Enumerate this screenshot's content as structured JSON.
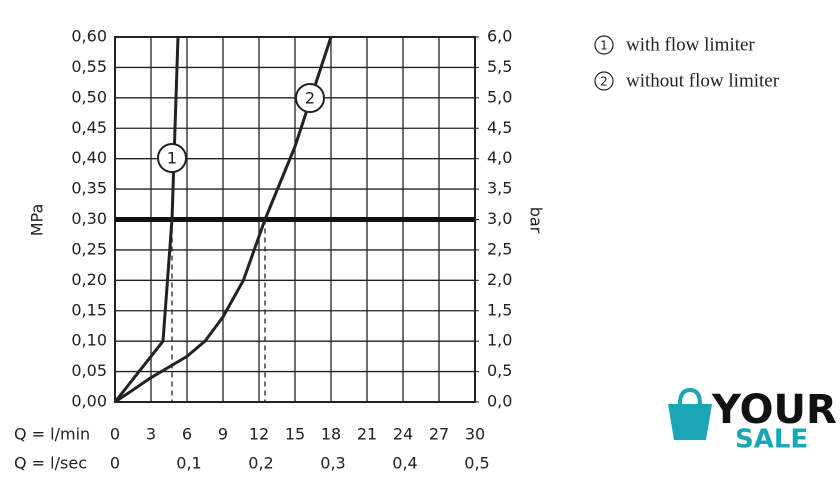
{
  "chart_data": {
    "type": "line",
    "x_label": "Q = l/min",
    "x2_label": "Q = l/sec",
    "y_label": "MPa",
    "y2_label": "bar",
    "xlim": [
      0,
      30
    ],
    "xticks": [
      0,
      3,
      6,
      9,
      12,
      15,
      18,
      21,
      24,
      27,
      30
    ],
    "x2lim": [
      0,
      0.5
    ],
    "x2ticks": [
      0,
      {
        "value": 0.1,
        "label": "0,1"
      },
      {
        "value": 0.2,
        "label": "0,2"
      },
      {
        "value": 0.3,
        "label": "0,3"
      },
      {
        "value": 0.4,
        "label": "0,4"
      },
      {
        "value": 0.5,
        "label": "0,5"
      }
    ],
    "ylim": [
      0,
      0.6
    ],
    "yticks": [
      {
        "value": 0,
        "label": "0,00"
      },
      {
        "value": 0.05,
        "label": "0,05"
      },
      {
        "value": 0.1,
        "label": "0,10"
      },
      {
        "value": 0.15,
        "label": "0,15"
      },
      {
        "value": 0.2,
        "label": "0,20"
      },
      {
        "value": 0.25,
        "label": "0,25"
      },
      {
        "value": 0.3,
        "label": "0,30"
      },
      {
        "value": 0.35,
        "label": "0,35"
      },
      {
        "value": 0.4,
        "label": "0,40"
      },
      {
        "value": 0.45,
        "label": "0,45"
      },
      {
        "value": 0.5,
        "label": "0,50"
      },
      {
        "value": 0.55,
        "label": "0,55"
      },
      {
        "value": 0.6,
        "label": "0,60"
      }
    ],
    "y2lim": [
      0,
      6
    ],
    "y2ticks": [
      {
        "value": 0,
        "label": "0,0"
      },
      {
        "value": 0.5,
        "label": "0,5"
      },
      {
        "value": 1,
        "label": "1,0"
      },
      {
        "value": 1.5,
        "label": "1,5"
      },
      {
        "value": 2,
        "label": "2,0"
      },
      {
        "value": 2.5,
        "label": "2,5"
      },
      {
        "value": 3,
        "label": "3,0"
      },
      {
        "value": 3.5,
        "label": "3,5"
      },
      {
        "value": 4,
        "label": "4,0"
      },
      {
        "value": 4.5,
        "label": "4,5"
      },
      {
        "value": 5,
        "label": "5,0"
      },
      {
        "value": 5.5,
        "label": "5,5"
      },
      {
        "value": 6,
        "label": "6,0"
      }
    ],
    "grid": true,
    "reference_line": 0.3,
    "drop_lines": [
      4.75,
      12.5
    ],
    "series": [
      {
        "name": "with flow limiter",
        "label": "1",
        "color": "#222222",
        "x": [
          0,
          4,
          4.75,
          5.25
        ],
        "values": [
          0,
          0.1,
          0.3,
          0.6
        ]
      },
      {
        "name": "without flow limiter",
        "label": "2",
        "color": "#222222",
        "x": [
          0,
          3,
          6,
          7.5,
          9,
          10.7,
          12.5,
          15,
          18
        ],
        "values": [
          0,
          0.04,
          0.075,
          0.1,
          0.14,
          0.2,
          0.3,
          0.42,
          0.6
        ]
      }
    ]
  },
  "watermark": {
    "line1": "YOUR",
    "line2": "SALE"
  }
}
